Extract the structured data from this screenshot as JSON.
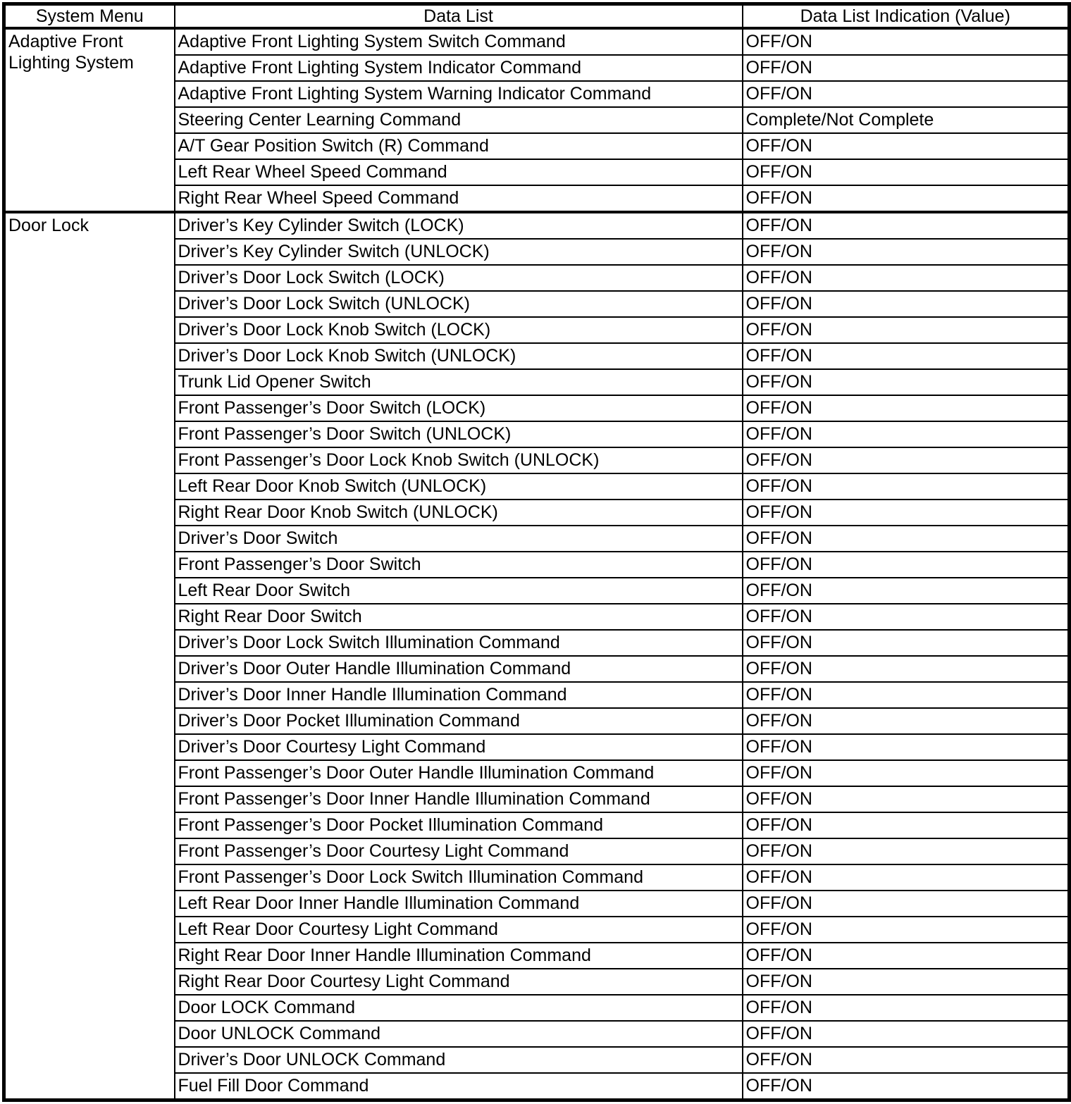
{
  "colors": {
    "border": "#000000",
    "text": "#000000",
    "background": "#ffffff"
  },
  "table": {
    "headers": [
      "System Menu",
      "Data List",
      "Data List Indication (Value)"
    ],
    "groups": [
      {
        "menu": "Adaptive Front Lighting System",
        "rows": [
          {
            "item": "Adaptive Front Lighting System Switch Command",
            "value": "OFF/ON"
          },
          {
            "item": "Adaptive Front Lighting System Indicator Command",
            "value": "OFF/ON"
          },
          {
            "item": "Adaptive Front Lighting System Warning Indicator Command",
            "value": "OFF/ON"
          },
          {
            "item": "Steering Center Learning Command",
            "value": "Complete/Not Complete"
          },
          {
            "item": "A/T Gear Position Switch (R) Command",
            "value": "OFF/ON"
          },
          {
            "item": "Left Rear Wheel Speed Command",
            "value": "OFF/ON"
          },
          {
            "item": "Right Rear Wheel Speed Command",
            "value": "OFF/ON"
          }
        ]
      },
      {
        "menu": "Door Lock",
        "rows": [
          {
            "item": "Driver’s Key Cylinder Switch (LOCK)",
            "value": "OFF/ON"
          },
          {
            "item": "Driver’s Key Cylinder Switch (UNLOCK)",
            "value": "OFF/ON"
          },
          {
            "item": "Driver’s Door Lock Switch (LOCK)",
            "value": "OFF/ON"
          },
          {
            "item": "Driver’s Door Lock Switch (UNLOCK)",
            "value": "OFF/ON"
          },
          {
            "item": "Driver’s Door Lock Knob Switch (LOCK)",
            "value": "OFF/ON"
          },
          {
            "item": "Driver’s Door Lock Knob Switch (UNLOCK)",
            "value": "OFF/ON"
          },
          {
            "item": "Trunk Lid Opener Switch",
            "value": "OFF/ON"
          },
          {
            "item": "Front Passenger’s Door Switch (LOCK)",
            "value": "OFF/ON"
          },
          {
            "item": "Front Passenger’s Door Switch (UNLOCK)",
            "value": "OFF/ON"
          },
          {
            "item": "Front Passenger’s Door Lock Knob Switch (UNLOCK)",
            "value": "OFF/ON"
          },
          {
            "item": "Left Rear Door Knob Switch (UNLOCK)",
            "value": "OFF/ON"
          },
          {
            "item": "Right Rear Door Knob Switch (UNLOCK)",
            "value": "OFF/ON"
          },
          {
            "item": "Driver’s Door Switch",
            "value": "OFF/ON"
          },
          {
            "item": "Front Passenger’s Door Switch",
            "value": "OFF/ON"
          },
          {
            "item": "Left Rear Door Switch",
            "value": "OFF/ON"
          },
          {
            "item": "Right Rear Door Switch",
            "value": "OFF/ON"
          },
          {
            "item": "Driver’s Door Lock Switch Illumination Command",
            "value": "OFF/ON"
          },
          {
            "item": "Driver’s Door Outer Handle Illumination Command",
            "value": "OFF/ON"
          },
          {
            "item": "Driver’s Door Inner Handle Illumination Command",
            "value": "OFF/ON"
          },
          {
            "item": "Driver’s Door Pocket Illumination Command",
            "value": "OFF/ON"
          },
          {
            "item": "Driver’s Door Courtesy Light Command",
            "value": "OFF/ON"
          },
          {
            "item": "Front Passenger’s Door Outer Handle Illumination Command",
            "value": "OFF/ON"
          },
          {
            "item": "Front Passenger’s Door Inner Handle Illumination Command",
            "value": "OFF/ON"
          },
          {
            "item": "Front Passenger’s Door Pocket Illumination Command",
            "value": "OFF/ON"
          },
          {
            "item": "Front Passenger’s Door Courtesy Light Command",
            "value": "OFF/ON"
          },
          {
            "item": "Front Passenger’s Door Lock Switch Illumination Command",
            "value": "OFF/ON"
          },
          {
            "item": "Left Rear Door Inner Handle Illumination Command",
            "value": "OFF/ON"
          },
          {
            "item": "Left Rear Door Courtesy Light Command",
            "value": "OFF/ON"
          },
          {
            "item": "Right Rear Door Inner Handle Illumination Command",
            "value": "OFF/ON"
          },
          {
            "item": "Right Rear Door Courtesy Light Command",
            "value": "OFF/ON"
          },
          {
            "item": "Door LOCK Command",
            "value": "OFF/ON"
          },
          {
            "item": "Door UNLOCK Command",
            "value": "OFF/ON"
          },
          {
            "item": "Driver’s Door UNLOCK Command",
            "value": "OFF/ON"
          },
          {
            "item": "Fuel Fill Door Command",
            "value": "OFF/ON"
          }
        ]
      }
    ]
  }
}
